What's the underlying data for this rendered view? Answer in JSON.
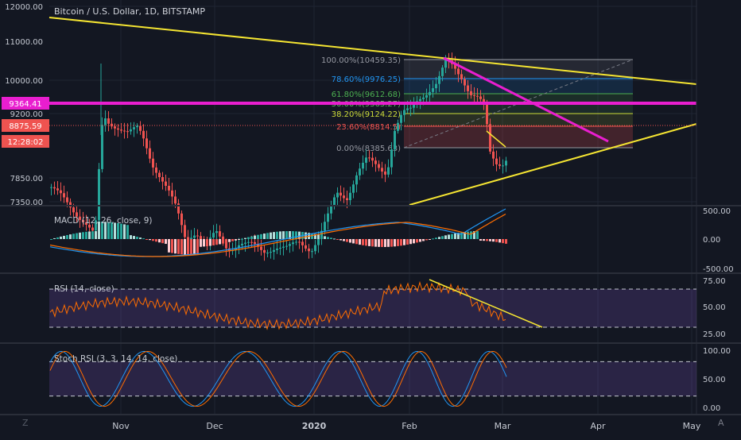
{
  "title": "Bitcoin / U.S. Dollar, 1D, BITSTAMP",
  "colors": {
    "background": "#131722",
    "up": "#26a69a",
    "down": "#ef5350",
    "trendline": "#f5e532",
    "magenta": "#e91ecf",
    "grid": "#1f2433",
    "axis_text": "#c5c9d2"
  },
  "chart_data": {
    "type": "candlestick",
    "price_axis": {
      "ticks": [
        "12000.00",
        "11000.00",
        "10000.00",
        "9200.00",
        "7850.00",
        "7350.00"
      ],
      "badges": [
        {
          "label": "9364.41",
          "color": "#e91ecf"
        },
        {
          "label": "8875.59",
          "color": "#ef5350"
        },
        {
          "label": "12:28:02",
          "color": "#ef5350"
        }
      ]
    },
    "time_axis": {
      "ticks": [
        "Nov",
        "Dec",
        "2020",
        "Feb",
        "Mar",
        "Apr",
        "May"
      ]
    },
    "fibonacci": [
      {
        "label": "100.00%(10459.35)",
        "color": "#9598a1"
      },
      {
        "label": "78.60%(9976.25)",
        "color": "#2196f3"
      },
      {
        "label": "61.80%(9612.68)",
        "color": "#4caf50"
      },
      {
        "label": "50.00%(9365.27)",
        "color": "#66bb6a"
      },
      {
        "label": "38.20%(9124.22)",
        "color": "#cddc39"
      },
      {
        "label": "23.60%(8814.5)",
        "color": "#ef5350"
      },
      {
        "label": "0.00%(8385.63)",
        "color": "#9598a1"
      }
    ],
    "macd": {
      "label": "MACD (12, 26, close, 9)",
      "ticks": [
        "500.00",
        "0.00",
        "-500.00"
      ]
    },
    "rsi": {
      "label": "RSI (14, close)",
      "ticks": [
        "75.00",
        "50.00",
        "25.00"
      ],
      "bands": [
        70,
        30
      ]
    },
    "stoch_rsi": {
      "label": "Stoch RSI (3, 3, 14, 14, close)",
      "ticks": [
        "100.00",
        "50.00",
        "0.00"
      ],
      "bands": [
        80,
        20
      ]
    }
  },
  "ui": {
    "tv_logo": "Z",
    "auto_label": "A"
  }
}
